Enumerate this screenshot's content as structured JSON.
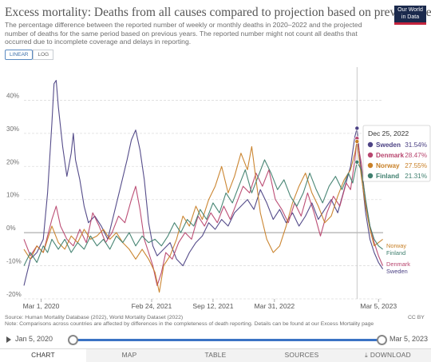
{
  "header": {
    "title": "Excess mortality: Deaths from all causes compared to projection based on previous years",
    "subtitle": "The percentage difference between the reported number of weekly or monthly deaths in 2020–2022 and the projected number of deaths for the same period based on previous years. The reported number might not count all deaths that occurred due to incomplete coverage and delays in reporting.",
    "logo_line1": "Our World",
    "logo_line2": "in Data"
  },
  "scale": {
    "linear": "LINEAR",
    "log": "LOG"
  },
  "chart_data": {
    "type": "line",
    "ylim": [
      -20,
      50
    ],
    "yticks": [
      -20,
      -10,
      0,
      10,
      20,
      30,
      40
    ],
    "ytick_labels": [
      "-20%",
      "-10%",
      "0%",
      "10%",
      "20%",
      "30%",
      "40%"
    ],
    "xtick_labels": [
      "Mar 1, 2020",
      "Feb 24, 2021",
      "Sep 12, 2021",
      "Mar 31, 2022",
      "Mar 5, 2023"
    ],
    "xtick_dates": [
      "2020-03-01",
      "2021-02-24",
      "2021-09-12",
      "2022-03-31",
      "2023-03-05"
    ],
    "x_range": [
      "2020-01-05",
      "2023-03-20"
    ],
    "grid": true,
    "series": [
      {
        "name": "Sweden",
        "color": "#4c4284",
        "end_value": -11,
        "points": [
          [
            "2020-01-05",
            -16
          ],
          [
            "2020-01-26",
            -8
          ],
          [
            "2020-02-16",
            -6
          ],
          [
            "2020-03-08",
            -2
          ],
          [
            "2020-03-22",
            12
          ],
          [
            "2020-04-05",
            33
          ],
          [
            "2020-04-12",
            45
          ],
          [
            "2020-04-19",
            46
          ],
          [
            "2020-04-26",
            38
          ],
          [
            "2020-05-10",
            26
          ],
          [
            "2020-05-24",
            17
          ],
          [
            "2020-06-07",
            24
          ],
          [
            "2020-06-14",
            30
          ],
          [
            "2020-06-21",
            22
          ],
          [
            "2020-07-05",
            16
          ],
          [
            "2020-07-19",
            8
          ],
          [
            "2020-08-02",
            3
          ],
          [
            "2020-08-23",
            5
          ],
          [
            "2020-09-13",
            2
          ],
          [
            "2020-10-04",
            -2
          ],
          [
            "2020-10-25",
            6
          ],
          [
            "2020-11-15",
            14
          ],
          [
            "2020-12-06",
            22
          ],
          [
            "2020-12-20",
            28
          ],
          [
            "2021-01-03",
            31
          ],
          [
            "2021-01-17",
            25
          ],
          [
            "2021-01-31",
            16
          ],
          [
            "2021-02-14",
            3
          ],
          [
            "2021-02-28",
            -4
          ],
          [
            "2021-03-14",
            -7
          ],
          [
            "2021-04-04",
            -5
          ],
          [
            "2021-04-25",
            -3
          ],
          [
            "2021-05-16",
            -8
          ],
          [
            "2021-06-06",
            -10
          ],
          [
            "2021-06-27",
            -6
          ],
          [
            "2021-07-18",
            -3
          ],
          [
            "2021-08-08",
            -1
          ],
          [
            "2021-08-29",
            3
          ],
          [
            "2021-09-19",
            1
          ],
          [
            "2021-10-10",
            4
          ],
          [
            "2021-10-31",
            2
          ],
          [
            "2021-11-21",
            6
          ],
          [
            "2021-12-12",
            8
          ],
          [
            "2022-01-02",
            10
          ],
          [
            "2022-01-23",
            7
          ],
          [
            "2022-02-13",
            13
          ],
          [
            "2022-03-06",
            9
          ],
          [
            "2022-03-27",
            4
          ],
          [
            "2022-04-17",
            7
          ],
          [
            "2022-05-08",
            3
          ],
          [
            "2022-05-29",
            6
          ],
          [
            "2022-06-19",
            2
          ],
          [
            "2022-07-10",
            5
          ],
          [
            "2022-07-31",
            9
          ],
          [
            "2022-08-21",
            4
          ],
          [
            "2022-09-11",
            7
          ],
          [
            "2022-10-02",
            10
          ],
          [
            "2022-10-23",
            6
          ],
          [
            "2022-11-13",
            13
          ],
          [
            "2022-12-04",
            20
          ],
          [
            "2022-12-18",
            29
          ],
          [
            "2022-12-25",
            31.54
          ],
          [
            "2023-01-08",
            18
          ],
          [
            "2023-01-22",
            6
          ],
          [
            "2023-02-05",
            -2
          ],
          [
            "2023-02-19",
            -6
          ],
          [
            "2023-03-05",
            -9
          ],
          [
            "2023-03-19",
            -11
          ]
        ]
      },
      {
        "name": "Denmark",
        "color": "#b8466f",
        "end_value": -10,
        "points": [
          [
            "2020-01-05",
            -2
          ],
          [
            "2020-01-26",
            -7
          ],
          [
            "2020-02-16",
            -4
          ],
          [
            "2020-03-08",
            -6
          ],
          [
            "2020-03-22",
            -1
          ],
          [
            "2020-04-05",
            4
          ],
          [
            "2020-04-19",
            8
          ],
          [
            "2020-05-03",
            2
          ],
          [
            "2020-05-24",
            -2
          ],
          [
            "2020-06-14",
            -4
          ],
          [
            "2020-07-05",
            1
          ],
          [
            "2020-07-26",
            -3
          ],
          [
            "2020-08-16",
            6
          ],
          [
            "2020-09-06",
            2
          ],
          [
            "2020-09-27",
            -3
          ],
          [
            "2020-10-18",
            0
          ],
          [
            "2020-11-08",
            5
          ],
          [
            "2020-11-29",
            3
          ],
          [
            "2020-12-20",
            10
          ],
          [
            "2021-01-03",
            14
          ],
          [
            "2021-01-17",
            7
          ],
          [
            "2021-01-31",
            -2
          ],
          [
            "2021-02-14",
            -6
          ],
          [
            "2021-02-28",
            -10
          ],
          [
            "2021-03-14",
            -16
          ],
          [
            "2021-03-28",
            -12
          ],
          [
            "2021-04-11",
            -6
          ],
          [
            "2021-05-02",
            -8
          ],
          [
            "2021-05-23",
            -3
          ],
          [
            "2021-06-13",
            0
          ],
          [
            "2021-07-04",
            -2
          ],
          [
            "2021-07-25",
            5
          ],
          [
            "2021-08-15",
            2
          ],
          [
            "2021-09-05",
            6
          ],
          [
            "2021-09-26",
            3
          ],
          [
            "2021-10-17",
            8
          ],
          [
            "2021-11-07",
            4
          ],
          [
            "2021-11-28",
            9
          ],
          [
            "2021-12-19",
            14
          ],
          [
            "2022-01-09",
            12
          ],
          [
            "2022-01-30",
            18
          ],
          [
            "2022-02-20",
            14
          ],
          [
            "2022-03-13",
            19
          ],
          [
            "2022-04-03",
            10
          ],
          [
            "2022-04-24",
            7
          ],
          [
            "2022-05-15",
            3
          ],
          [
            "2022-06-05",
            9
          ],
          [
            "2022-06-26",
            5
          ],
          [
            "2022-07-17",
            12
          ],
          [
            "2022-08-07",
            6
          ],
          [
            "2022-08-28",
            -1
          ],
          [
            "2022-09-18",
            6
          ],
          [
            "2022-10-09",
            11
          ],
          [
            "2022-10-30",
            8
          ],
          [
            "2022-11-20",
            15
          ],
          [
            "2022-12-04",
            13
          ],
          [
            "2022-12-18",
            22
          ],
          [
            "2022-12-25",
            28.47
          ],
          [
            "2023-01-08",
            21
          ],
          [
            "2023-01-22",
            9
          ],
          [
            "2023-02-05",
            2
          ],
          [
            "2023-02-19",
            -3
          ],
          [
            "2023-03-05",
            -7
          ],
          [
            "2023-03-19",
            -10
          ]
        ]
      },
      {
        "name": "Norway",
        "color": "#c88027",
        "end_value": -2,
        "points": [
          [
            "2020-01-05",
            -5
          ],
          [
            "2020-01-26",
            -8
          ],
          [
            "2020-02-16",
            -4
          ],
          [
            "2020-03-08",
            -6
          ],
          [
            "2020-03-22",
            -2
          ],
          [
            "2020-04-05",
            2
          ],
          [
            "2020-04-26",
            -3
          ],
          [
            "2020-05-17",
            -5
          ],
          [
            "2020-06-07",
            -1
          ],
          [
            "2020-06-28",
            -3
          ],
          [
            "2020-07-19",
            1
          ],
          [
            "2020-08-09",
            -2
          ],
          [
            "2020-08-30",
            -1
          ],
          [
            "2020-09-20",
            1
          ],
          [
            "2020-10-11",
            -2
          ],
          [
            "2020-11-01",
            0
          ],
          [
            "2020-11-22",
            -3
          ],
          [
            "2020-12-13",
            -5
          ],
          [
            "2021-01-03",
            -8
          ],
          [
            "2021-01-24",
            -5
          ],
          [
            "2021-02-14",
            -8
          ],
          [
            "2021-03-07",
            -12
          ],
          [
            "2021-03-21",
            -18
          ],
          [
            "2021-04-04",
            -10
          ],
          [
            "2021-04-25",
            -7
          ],
          [
            "2021-05-16",
            -2
          ],
          [
            "2021-06-06",
            5
          ],
          [
            "2021-06-27",
            2
          ],
          [
            "2021-07-18",
            8
          ],
          [
            "2021-08-08",
            4
          ],
          [
            "2021-08-29",
            10
          ],
          [
            "2021-09-19",
            14
          ],
          [
            "2021-10-10",
            20
          ],
          [
            "2021-10-31",
            12
          ],
          [
            "2021-11-21",
            17
          ],
          [
            "2021-12-12",
            24
          ],
          [
            "2022-01-02",
            19
          ],
          [
            "2022-01-16",
            26
          ],
          [
            "2022-01-30",
            16
          ],
          [
            "2022-02-13",
            6
          ],
          [
            "2022-03-06",
            -2
          ],
          [
            "2022-03-27",
            -6
          ],
          [
            "2022-04-17",
            -4
          ],
          [
            "2022-05-08",
            2
          ],
          [
            "2022-05-29",
            9
          ],
          [
            "2022-06-19",
            14
          ],
          [
            "2022-07-10",
            18
          ],
          [
            "2022-07-31",
            12
          ],
          [
            "2022-08-21",
            8
          ],
          [
            "2022-09-11",
            3
          ],
          [
            "2022-10-02",
            5
          ],
          [
            "2022-10-23",
            11
          ],
          [
            "2022-11-13",
            16
          ],
          [
            "2022-12-04",
            19
          ],
          [
            "2022-12-18",
            24
          ],
          [
            "2022-12-25",
            27.55
          ],
          [
            "2023-01-08",
            17
          ],
          [
            "2023-01-22",
            8
          ],
          [
            "2023-02-05",
            1
          ],
          [
            "2023-02-19",
            -4
          ],
          [
            "2023-03-05",
            -3
          ],
          [
            "2023-03-19",
            -2
          ]
        ]
      },
      {
        "name": "Finland",
        "color": "#3f7f6e",
        "end_value": -5,
        "points": [
          [
            "2020-01-05",
            -10
          ],
          [
            "2020-01-26",
            -6
          ],
          [
            "2020-02-16",
            -9
          ],
          [
            "2020-03-08",
            -4
          ],
          [
            "2020-03-22",
            -6
          ],
          [
            "2020-04-05",
            -2
          ],
          [
            "2020-04-26",
            -5
          ],
          [
            "2020-05-17",
            -2
          ],
          [
            "2020-06-07",
            -6
          ],
          [
            "2020-06-28",
            -3
          ],
          [
            "2020-07-19",
            -5
          ],
          [
            "2020-08-09",
            -1
          ],
          [
            "2020-08-30",
            -4
          ],
          [
            "2020-09-20",
            -2
          ],
          [
            "2020-10-11",
            -5
          ],
          [
            "2020-11-01",
            -1
          ],
          [
            "2020-11-22",
            -3
          ],
          [
            "2020-12-13",
            0
          ],
          [
            "2021-01-03",
            -4
          ],
          [
            "2021-01-24",
            -1
          ],
          [
            "2021-02-14",
            -3
          ],
          [
            "2021-03-07",
            -2
          ],
          [
            "2021-03-28",
            -4
          ],
          [
            "2021-04-18",
            -1
          ],
          [
            "2021-05-09",
            3
          ],
          [
            "2021-05-30",
            0
          ],
          [
            "2021-06-20",
            4
          ],
          [
            "2021-07-11",
            2
          ],
          [
            "2021-08-01",
            7
          ],
          [
            "2021-08-22",
            4
          ],
          [
            "2021-09-12",
            9
          ],
          [
            "2021-10-03",
            6
          ],
          [
            "2021-10-24",
            12
          ],
          [
            "2021-11-14",
            9
          ],
          [
            "2021-12-05",
            14
          ],
          [
            "2021-12-26",
            19
          ],
          [
            "2022-01-16",
            12
          ],
          [
            "2022-02-06",
            17
          ],
          [
            "2022-02-27",
            22
          ],
          [
            "2022-03-20",
            18
          ],
          [
            "2022-04-10",
            13
          ],
          [
            "2022-05-01",
            16
          ],
          [
            "2022-05-22",
            11
          ],
          [
            "2022-06-12",
            8
          ],
          [
            "2022-07-03",
            12
          ],
          [
            "2022-07-24",
            18
          ],
          [
            "2022-08-14",
            13
          ],
          [
            "2022-09-04",
            9
          ],
          [
            "2022-09-25",
            14
          ],
          [
            "2022-10-16",
            17
          ],
          [
            "2022-11-06",
            13
          ],
          [
            "2022-11-27",
            18
          ],
          [
            "2022-12-11",
            15
          ],
          [
            "2022-12-25",
            21.31
          ],
          [
            "2023-01-08",
            19
          ],
          [
            "2023-01-22",
            10
          ],
          [
            "2023-02-05",
            2
          ],
          [
            "2023-02-19",
            -2
          ],
          [
            "2023-03-05",
            -4
          ],
          [
            "2023-03-19",
            -5
          ]
        ]
      }
    ],
    "tooltip": {
      "date": "Dec 25, 2022",
      "rows": [
        {
          "name": "Sweden",
          "value": "31.54%",
          "color": "#4c4284"
        },
        {
          "name": "Denmark",
          "value": "28.47%",
          "color": "#b8466f"
        },
        {
          "name": "Norway",
          "value": "27.55%",
          "color": "#c88027"
        },
        {
          "name": "Finland",
          "value": "21.31%",
          "color": "#3f7f6e"
        }
      ]
    },
    "end_labels": [
      {
        "name": "Norway",
        "color": "#c88027"
      },
      {
        "name": "Finland",
        "color": "#3f7f6e"
      },
      {
        "name": "Denmark",
        "color": "#b8466f"
      },
      {
        "name": "Sweden",
        "color": "#4c4284"
      }
    ]
  },
  "footer": {
    "source": "Source: Human Mortality Database (2022), World Mortality Dataset (2022)",
    "note": "Note: Comparisons across countries are affected by differences in the completeness of death reporting. Details can be found at our Excess Mortality page",
    "license": "CC BY"
  },
  "timeline": {
    "start": "Jan 5, 2020",
    "end": "Mar 5, 2023"
  },
  "tabs": [
    "CHART",
    "MAP",
    "TABLE",
    "SOURCES",
    "DOWNLOAD"
  ]
}
